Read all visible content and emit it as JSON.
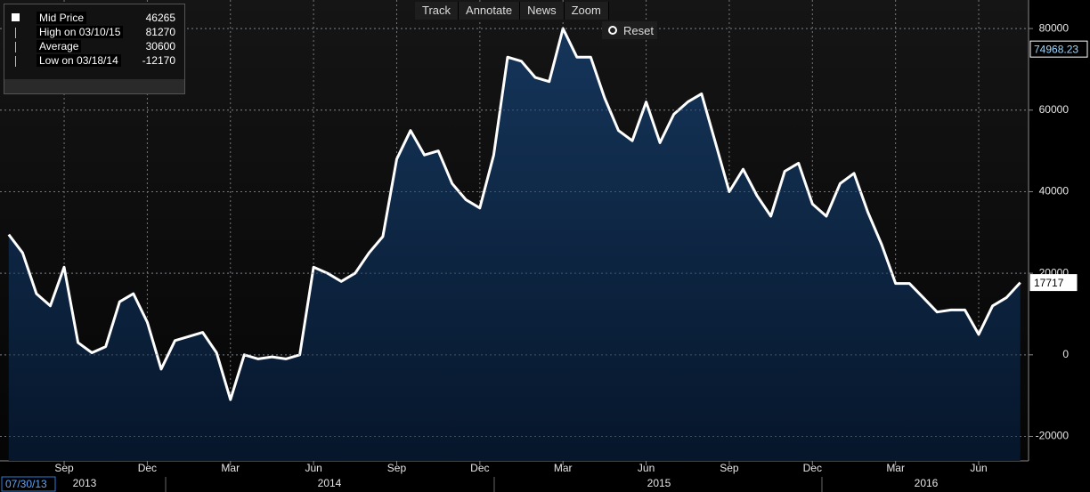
{
  "chart_data": {
    "type": "area",
    "categories": [
      null,
      null,
      null,
      null,
      "Sep",
      null,
      null,
      null,
      null,
      null,
      "Dec",
      null,
      null,
      null,
      null,
      null,
      "Mar",
      null,
      null,
      null,
      null,
      null,
      "Jun",
      null,
      null,
      null,
      null,
      null,
      "Sep",
      null,
      null,
      null,
      null,
      null,
      "Dec",
      null,
      null,
      null,
      null,
      null,
      "Mar",
      null,
      null,
      null,
      null,
      null,
      "Jun",
      null,
      null,
      null,
      null,
      null,
      "Sep",
      null,
      null,
      null,
      null,
      null,
      "Dec",
      null,
      null,
      null,
      null,
      null,
      "Mar",
      null,
      null,
      null,
      null,
      null,
      "Jun",
      null,
      null,
      null
    ],
    "series": [
      {
        "name": "Mid Price",
        "color": "#ffffff",
        "values": [
          29500,
          25000,
          15000,
          12000,
          21500,
          3000,
          500,
          2000,
          13000,
          15000,
          8000,
          -3500,
          3500,
          4500,
          5500,
          500,
          -11000,
          0,
          -1000,
          -500,
          -1000,
          0,
          21500,
          20000,
          18000,
          20000,
          25000,
          29000,
          48000,
          55000,
          49000,
          50000,
          42000,
          38000,
          36000,
          49000,
          73000,
          72000,
          68000,
          67000,
          80000,
          73000,
          73000,
          63000,
          55000,
          52500,
          62000,
          52000,
          59000,
          62000,
          64000,
          52000,
          40000,
          45500,
          39000,
          34000,
          45000,
          47000,
          37000,
          34000,
          42000,
          44500,
          35000,
          27000,
          17500,
          17500,
          14000,
          10500,
          11000,
          11000,
          5000,
          12000,
          14000,
          17717
        ]
      }
    ],
    "ylim": [
      -26000,
      87000
    ],
    "yticks": [
      80000,
      60000,
      40000,
      20000,
      0,
      -20000
    ],
    "grid": true,
    "start_date": "07/30/13",
    "year_labels": [
      "2013",
      "2014",
      "2015",
      "2016"
    ],
    "axis_tags": [
      {
        "value": 74968.23,
        "label": "74968.23"
      },
      {
        "value": 17717,
        "label": "17717"
      }
    ]
  },
  "legend": {
    "items": [
      {
        "label": "Mid Price",
        "value": 46265
      },
      {
        "label": "High on 03/10/15",
        "value": 81270
      },
      {
        "label": "Average",
        "value": 30600
      },
      {
        "label": "Low on 03/18/14",
        "value": -12170
      }
    ]
  },
  "toolbar": {
    "buttons": [
      "Track",
      "Annotate",
      "News",
      "Zoom"
    ],
    "reset": "Reset"
  }
}
